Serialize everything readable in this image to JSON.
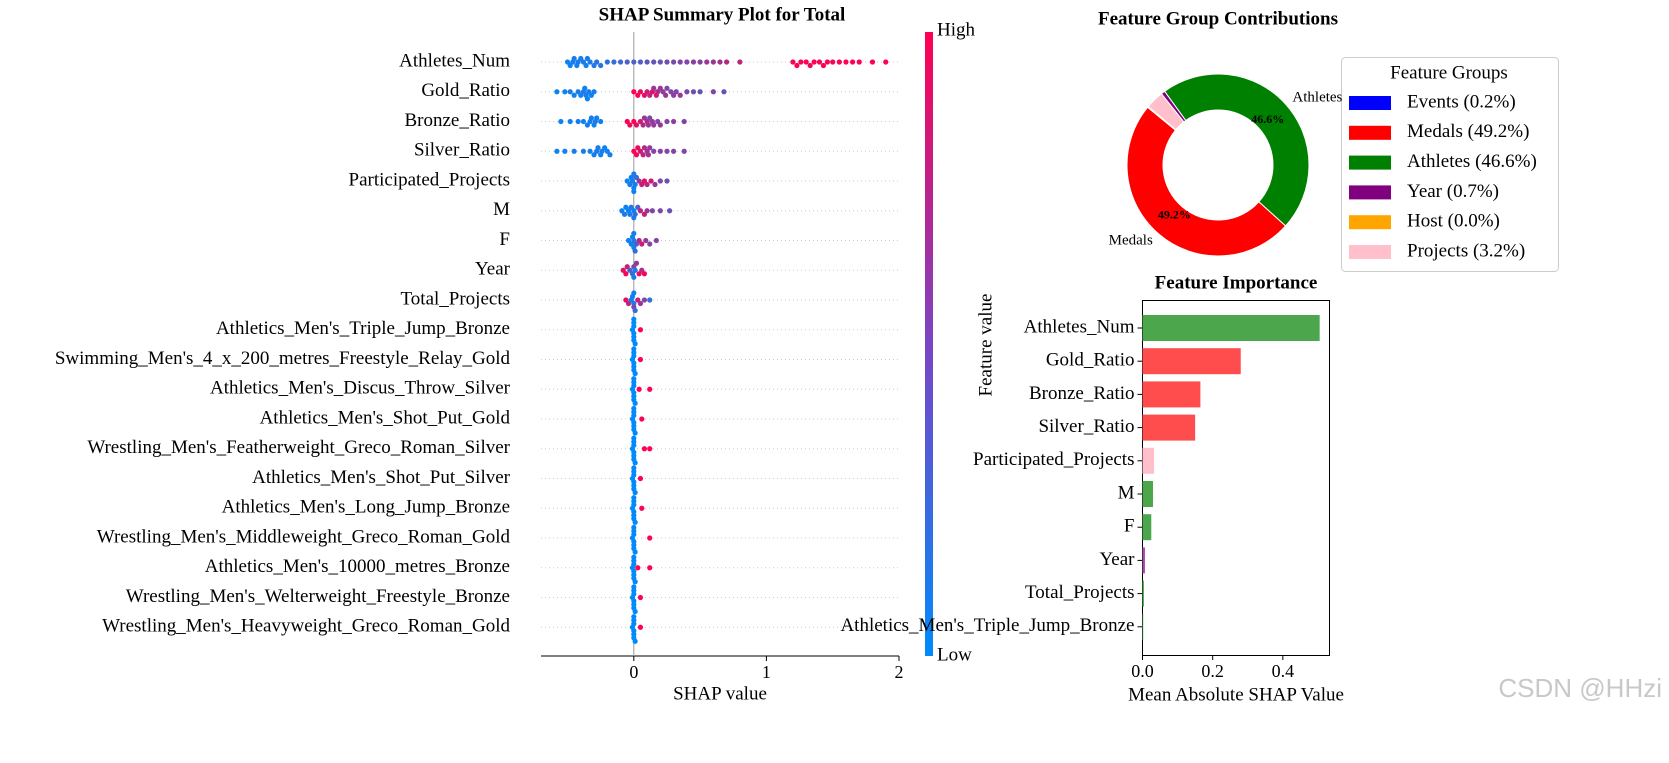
{
  "chart_data": [
    {
      "type": "beeswarm",
      "title": "SHAP Summary Plot for Total",
      "x_label": "SHAP value",
      "xlim": [
        -0.7,
        2.0
      ],
      "xticks": [
        0,
        1,
        2
      ],
      "colorbar_label": "Feature value",
      "colorbar_high": "High",
      "colorbar_low": "Low",
      "colormap": [
        "#008afb",
        "#ff0052"
      ],
      "series": [
        {
          "name": "Athletes_Num",
          "x": [
            -0.5,
            -0.48,
            -0.46,
            -0.45,
            -0.43,
            -0.42,
            -0.4,
            -0.38,
            -0.36,
            -0.35,
            -0.33,
            -0.3,
            -0.28,
            -0.25,
            -0.2,
            -0.15,
            -0.1,
            -0.05,
            0.0,
            0.05,
            0.1,
            0.15,
            0.2,
            0.25,
            0.3,
            0.35,
            0.4,
            0.45,
            0.5,
            0.55,
            0.6,
            0.65,
            0.7,
            0.8,
            1.2,
            1.23,
            1.26,
            1.3,
            1.33,
            1.36,
            1.4,
            1.43,
            1.46,
            1.5,
            1.55,
            1.6,
            1.65,
            1.7,
            1.8,
            1.9
          ],
          "feature_values": [
            0.05,
            0.05,
            0.08,
            0.1,
            0.05,
            0.1,
            0.08,
            0.1,
            0.05,
            0.1,
            0.12,
            0.12,
            0.15,
            0.15,
            0.2,
            0.2,
            0.25,
            0.3,
            0.3,
            0.35,
            0.35,
            0.4,
            0.4,
            0.45,
            0.45,
            0.5,
            0.5,
            0.55,
            0.55,
            0.6,
            0.6,
            0.65,
            0.7,
            0.75,
            0.95,
            1,
            0.95,
            1,
            0.95,
            1,
            0.95,
            1,
            1,
            0.95,
            1,
            1,
            1,
            1,
            1,
            1
          ]
        },
        {
          "name": "Gold_Ratio",
          "x": [
            -0.58,
            -0.52,
            -0.48,
            -0.45,
            -0.42,
            -0.4,
            -0.38,
            -0.37,
            -0.36,
            -0.35,
            -0.34,
            -0.32,
            -0.3,
            0.0,
            0.03,
            0.05,
            0.08,
            0.1,
            0.12,
            0.14,
            0.15,
            0.17,
            0.18,
            0.2,
            0.22,
            0.24,
            0.25,
            0.28,
            0.3,
            0.32,
            0.35,
            0.4,
            0.45,
            0.5,
            0.6,
            0.68
          ],
          "feature_values": [
            0.05,
            0.05,
            0.1,
            0.05,
            0.1,
            0.05,
            0.1,
            0.05,
            0.1,
            0.05,
            0.1,
            0.05,
            0.1,
            1,
            1,
            0.9,
            0.95,
            0.8,
            0.7,
            0.9,
            0.6,
            0.8,
            0.7,
            0.6,
            0.55,
            0.6,
            0.5,
            0.5,
            0.55,
            0.5,
            0.6,
            0.5,
            0.45,
            0.4,
            0.5,
            0.4
          ]
        },
        {
          "name": "Bronze_Ratio",
          "x": [
            -0.55,
            -0.48,
            -0.42,
            -0.38,
            -0.35,
            -0.33,
            -0.32,
            -0.3,
            -0.29,
            -0.28,
            -0.25,
            -0.05,
            -0.03,
            0.0,
            0.02,
            0.05,
            0.07,
            0.08,
            0.1,
            0.11,
            0.12,
            0.14,
            0.15,
            0.18,
            0.2,
            0.25,
            0.3,
            0.38
          ],
          "feature_values": [
            0.05,
            0.05,
            0.1,
            0.05,
            0.1,
            0.05,
            0.1,
            0.05,
            0.1,
            0.05,
            0.1,
            1,
            0.95,
            1,
            0.9,
            0.8,
            0.7,
            0.6,
            0.7,
            0.6,
            0.5,
            0.55,
            0.6,
            0.5,
            0.6,
            0.5,
            0.55,
            0.5
          ]
        },
        {
          "name": "Silver_Ratio",
          "x": [
            -0.58,
            -0.52,
            -0.45,
            -0.38,
            -0.33,
            -0.3,
            -0.28,
            -0.27,
            -0.25,
            -0.24,
            -0.22,
            -0.2,
            -0.18,
            0.0,
            0.02,
            0.03,
            0.05,
            0.07,
            0.08,
            0.1,
            0.11,
            0.12,
            0.15,
            0.2,
            0.25,
            0.3,
            0.38
          ],
          "feature_values": [
            0.05,
            0.05,
            0.1,
            0.1,
            0.05,
            0.1,
            0.05,
            0.1,
            0.05,
            0.1,
            0.05,
            0.05,
            0.1,
            1,
            0.95,
            0.95,
            0.8,
            0.75,
            0.7,
            0.6,
            0.65,
            0.6,
            0.5,
            0.55,
            0.5,
            0.5,
            0.5
          ]
        },
        {
          "name": "Participated_Projects",
          "x": [
            -0.05,
            -0.03,
            -0.02,
            -0.01,
            0,
            0,
            0,
            0.01,
            0.02,
            0.04,
            0.06,
            0.08,
            0.1,
            0.13,
            0.16,
            0.2,
            0.25
          ],
          "feature_values": [
            0.05,
            0.1,
            0.05,
            0.1,
            0.05,
            0.1,
            0.05,
            0.1,
            0.2,
            0.6,
            0.8,
            0.9,
            0.7,
            0.8,
            0.6,
            0.5,
            0.4
          ]
        },
        {
          "name": "M",
          "x": [
            -0.09,
            -0.07,
            -0.06,
            -0.04,
            -0.03,
            -0.02,
            0,
            0,
            0.01,
            0.03,
            0.05,
            0.08,
            0.1,
            0.14,
            0.2,
            0.27
          ],
          "feature_values": [
            0.05,
            0.1,
            0.05,
            0.05,
            0.1,
            0.1,
            0.05,
            0.1,
            0.2,
            0.3,
            0.7,
            0.8,
            0.6,
            0.5,
            0.5,
            0.4
          ]
        },
        {
          "name": "F",
          "x": [
            -0.04,
            -0.02,
            -0.01,
            0,
            0,
            0,
            0.01,
            0.02,
            0.04,
            0.06,
            0.09,
            0.12,
            0.17
          ],
          "feature_values": [
            0.05,
            0.1,
            0.05,
            0.1,
            0.05,
            0.1,
            0.2,
            0.3,
            0.7,
            0.8,
            0.6,
            0.5,
            0.5
          ]
        },
        {
          "name": "Year",
          "x": [
            -0.08,
            -0.06,
            -0.05,
            -0.03,
            -0.01,
            0,
            0,
            0.01,
            0.02,
            0.04,
            0.06,
            0.08
          ],
          "feature_values": [
            0.9,
            0.95,
            0.8,
            0.3,
            0.2,
            0.5,
            0.1,
            0.1,
            0.6,
            0.9,
            0.7,
            0.95
          ]
        },
        {
          "name": "Total_Projects",
          "x": [
            -0.06,
            -0.04,
            -0.02,
            -0.01,
            0,
            0,
            0,
            0.01,
            0.03,
            0.05,
            0.08,
            0.12
          ],
          "feature_values": [
            0.9,
            0.7,
            0.1,
            0.05,
            0.1,
            0.5,
            0.05,
            0.2,
            0.8,
            0.6,
            0.5,
            0.2
          ]
        },
        {
          "name": "Athletics_Men's_Triple_Jump_Bronze",
          "x": [
            -0.01,
            0,
            0,
            0,
            0,
            0,
            0,
            0.01,
            0.05
          ],
          "feature_values": [
            0,
            0,
            0,
            0,
            0,
            0,
            0,
            0,
            1
          ]
        },
        {
          "name": "Swimming_Men's_4_x_200_metres_Freestyle_Relay_Gold",
          "x": [
            -0.01,
            0,
            0,
            0,
            0,
            0,
            0,
            0.01,
            0.05
          ],
          "feature_values": [
            0,
            0,
            0,
            0,
            0,
            0,
            0,
            0,
            1
          ]
        },
        {
          "name": "Athletics_Men's_Discus_Throw_Silver",
          "x": [
            -0.01,
            0,
            0,
            0,
            0,
            0,
            0,
            0.01,
            0.04,
            0.12
          ],
          "feature_values": [
            0,
            0,
            0,
            0,
            0,
            0,
            0,
            0,
            1,
            1
          ]
        },
        {
          "name": "Athletics_Men's_Shot_Put_Gold",
          "x": [
            -0.01,
            0,
            0,
            0,
            0,
            0,
            0,
            0.01,
            0.06
          ],
          "feature_values": [
            0,
            0,
            0,
            0,
            0,
            0,
            0,
            0,
            1
          ]
        },
        {
          "name": "Wrestling_Men's_Featherweight_Greco_Roman_Silver",
          "x": [
            -0.01,
            0,
            0,
            0,
            0,
            0,
            0,
            0.01,
            0.08,
            0.12
          ],
          "feature_values": [
            0,
            0,
            0,
            0,
            0,
            0,
            0,
            0,
            1,
            1
          ]
        },
        {
          "name": "Athletics_Men's_Shot_Put_Silver",
          "x": [
            -0.01,
            0,
            0,
            0,
            0,
            0,
            0,
            0.01,
            0.05
          ],
          "feature_values": [
            0,
            0,
            0,
            0,
            0,
            0,
            0,
            0,
            1
          ]
        },
        {
          "name": "Athletics_Men's_Long_Jump_Bronze",
          "x": [
            -0.01,
            0,
            0,
            0,
            0,
            0,
            0,
            0.01,
            0.06
          ],
          "feature_values": [
            0,
            0,
            0,
            0,
            0,
            0,
            0,
            0,
            1
          ]
        },
        {
          "name": "Wrestling_Men's_Middleweight_Greco_Roman_Gold",
          "x": [
            -0.01,
            0,
            0,
            0,
            0,
            0,
            0,
            0.01,
            0.12
          ],
          "feature_values": [
            0,
            0,
            0,
            0,
            0,
            0,
            0,
            0,
            1
          ]
        },
        {
          "name": "Athletics_Men's_10000_metres_Bronze",
          "x": [
            -0.01,
            0,
            0,
            0,
            0,
            0,
            0,
            0.01,
            0.03,
            0.12
          ],
          "feature_values": [
            0,
            0,
            0,
            0,
            0,
            0,
            0,
            0,
            1,
            1
          ]
        },
        {
          "name": "Wrestling_Men's_Welterweight_Freestyle_Bronze",
          "x": [
            -0.01,
            0,
            0,
            0,
            0,
            0,
            0,
            0.01,
            0.05
          ],
          "feature_values": [
            0,
            0,
            0,
            0,
            0,
            0,
            0,
            0,
            1
          ]
        },
        {
          "name": "Wrestling_Men's_Heavyweight_Greco_Roman_Gold",
          "x": [
            -0.01,
            0,
            0,
            0,
            0,
            0,
            0,
            0.01,
            0.05
          ],
          "feature_values": [
            0,
            0,
            0,
            0,
            0,
            0,
            0,
            0,
            1
          ]
        }
      ]
    },
    {
      "type": "donut",
      "title": "Feature Group Contributions",
      "startangle": 140,
      "categories": [
        "Events",
        "Medals",
        "Athletes",
        "Year",
        "Host",
        "Projects"
      ],
      "values": [
        0.2,
        49.2,
        46.6,
        0.7,
        0.0,
        3.2
      ],
      "value_labels": [
        null,
        "49.2%",
        "46.6%",
        null,
        null,
        null
      ],
      "colors": [
        "#0000ff",
        "#ff0000",
        "#008000",
        "#800080",
        "#ffa500",
        "#ffc0cb"
      ],
      "legend_title": "Feature Groups",
      "legend_labels": [
        "Events (0.2%)",
        "Medals (49.2%)",
        "Athletes (46.6%)",
        "Year (0.7%)",
        "Host (0.0%)",
        "Projects (3.2%)"
      ],
      "legend": "upper right"
    },
    {
      "type": "barh",
      "title": "Feature Importance",
      "x_label": "Mean Absolute SHAP Value",
      "categories": [
        "Athletes_Num",
        "Gold_Ratio",
        "Bronze_Ratio",
        "Silver_Ratio",
        "Participated_Projects",
        "M",
        "F",
        "Year",
        "Total_Projects",
        "Athletics_Men's_Triple_Jump_Bronze"
      ],
      "values": [
        0.505,
        0.28,
        0.165,
        0.15,
        0.033,
        0.03,
        0.025,
        0.007,
        0.004,
        0.002
      ],
      "colors": [
        "#4ca64c",
        "#ff4c4c",
        "#ff4c4c",
        "#ff4c4c",
        "#ffc0cb",
        "#4ca64c",
        "#4ca64c",
        "#a64ca6",
        "#4ca64c",
        "#4ca64c"
      ],
      "xlim": [
        0,
        0.533
      ],
      "xticks": [
        {
          "value": 0,
          "label": "0.0"
        },
        {
          "value": 0.2,
          "label": "0.2"
        },
        {
          "value": 0.4,
          "label": "0.4"
        }
      ]
    },
    {
      "type": "watermark",
      "text": "CSDN @HHzi"
    }
  ]
}
